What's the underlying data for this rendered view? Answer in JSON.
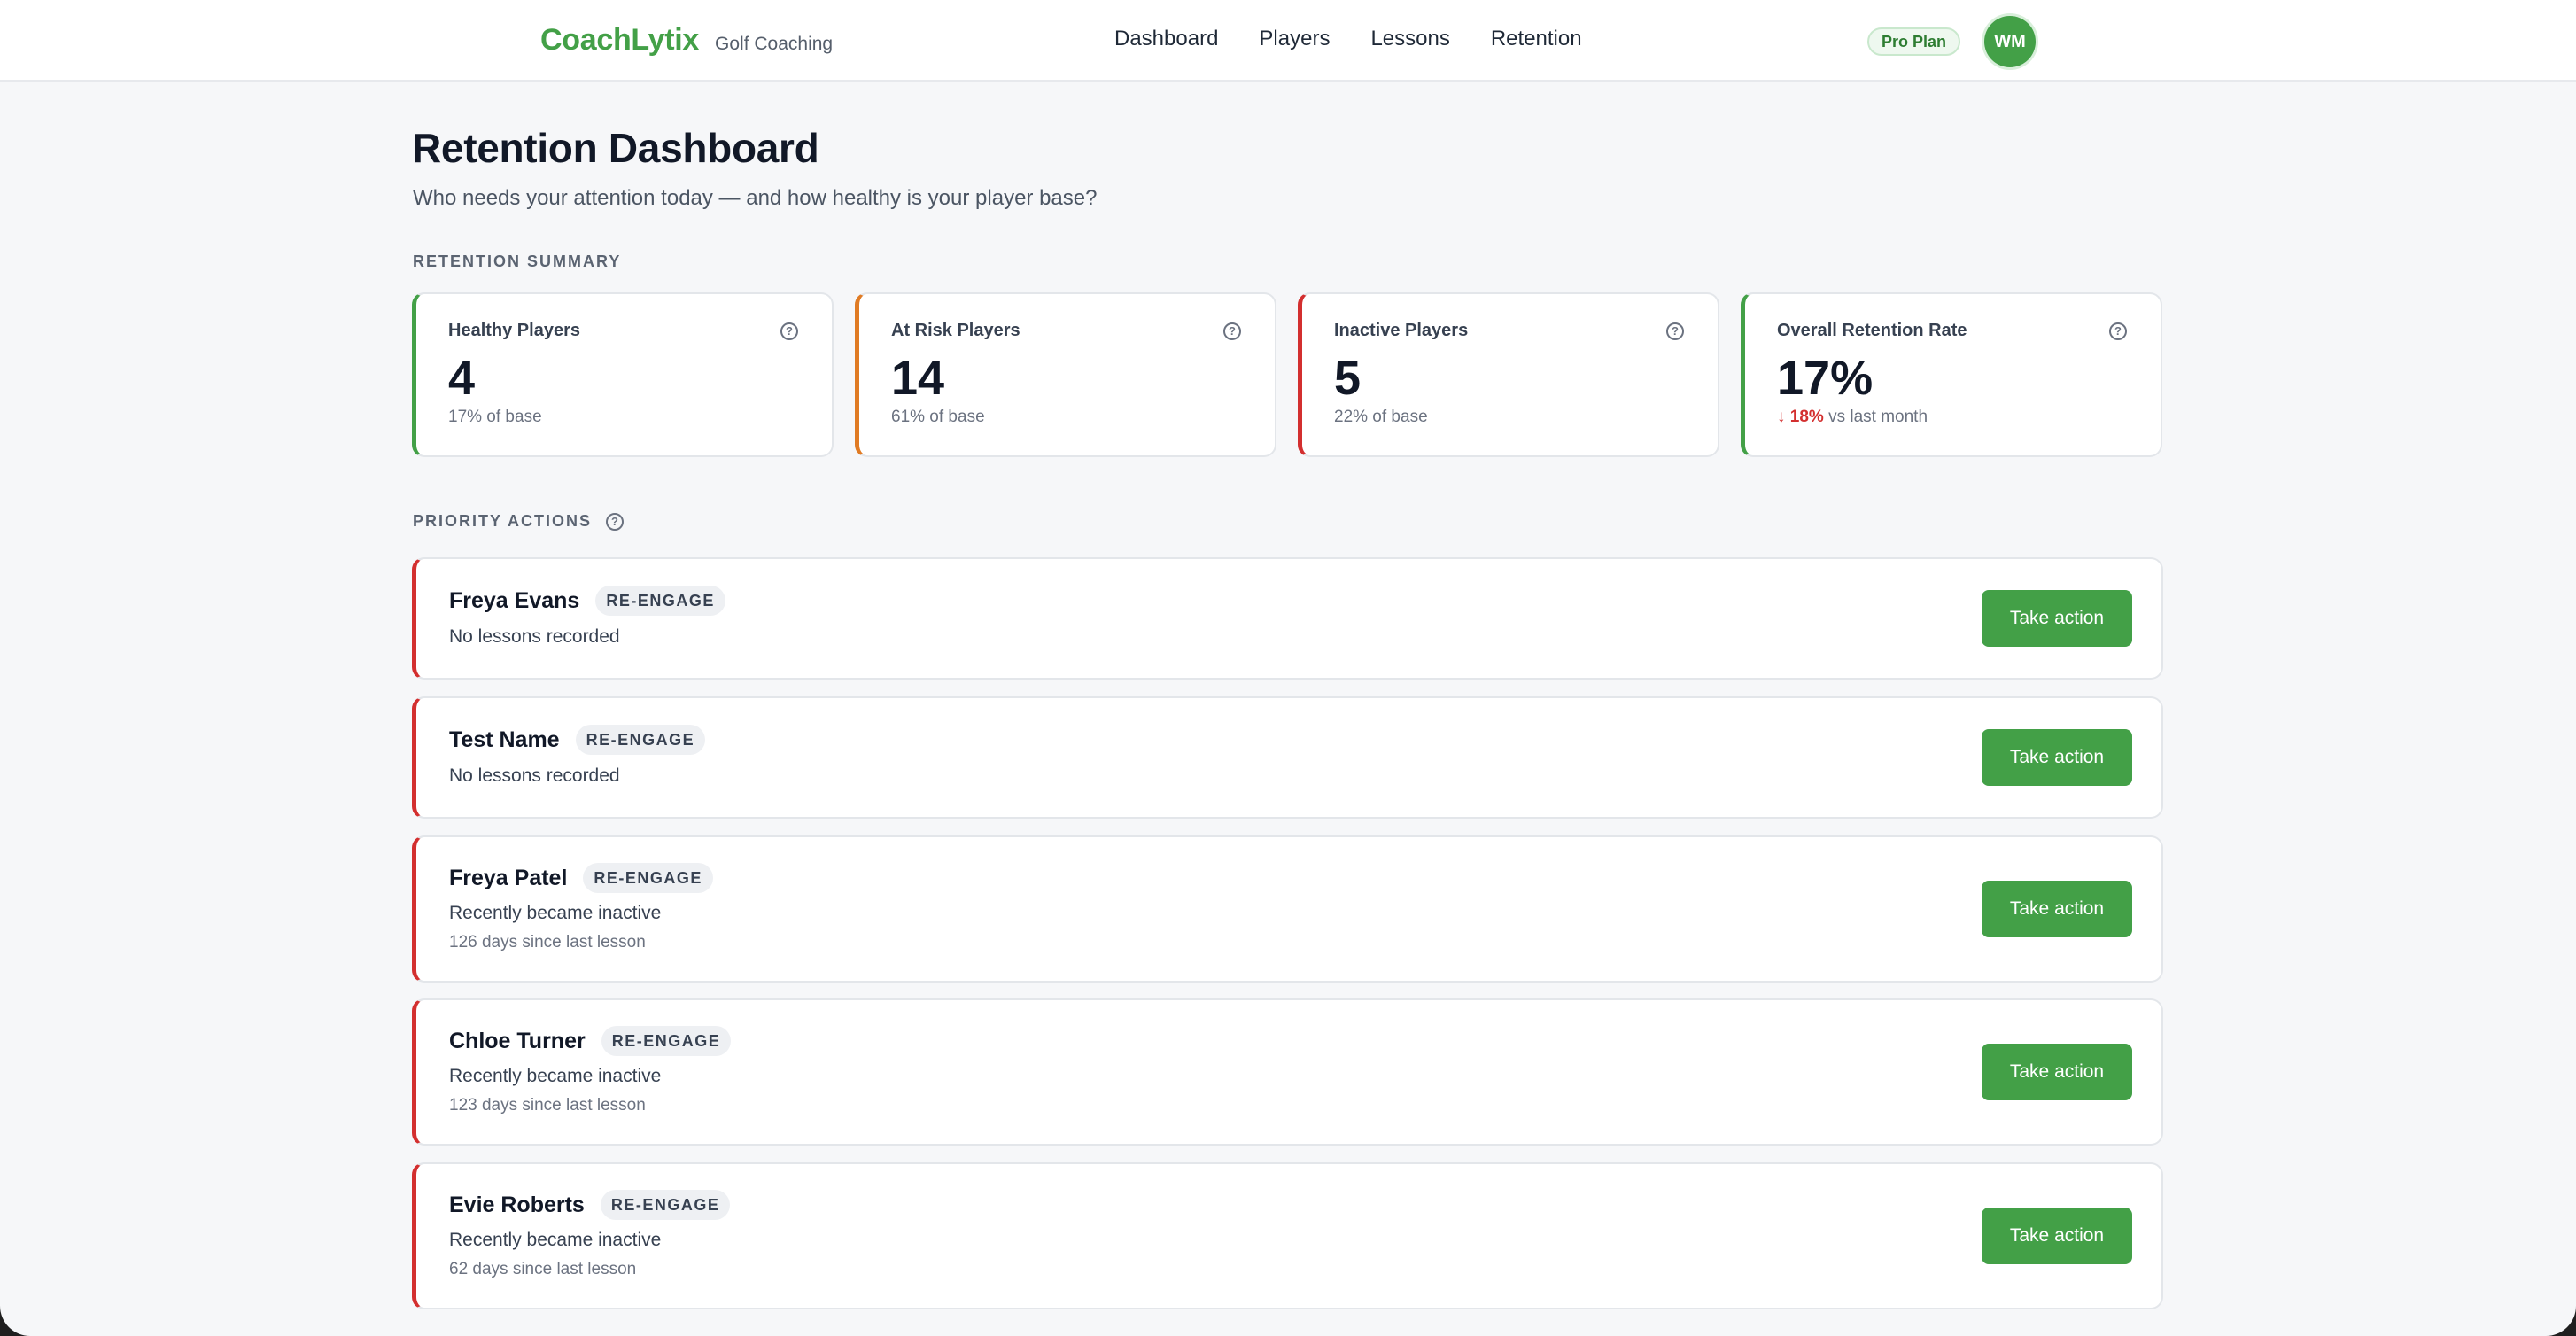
{
  "brand": {
    "name": "CoachLytix",
    "subtitle": "Golf Coaching",
    "color": "#43a047"
  },
  "nav": [
    "Dashboard",
    "Players",
    "Lessons",
    "Retention"
  ],
  "plan_badge": "Pro Plan",
  "user": {
    "initials": "WM"
  },
  "header": {
    "title": "Retention Dashboard",
    "subtitle": "Who needs your attention today — and how healthy is your player base?"
  },
  "summary": {
    "label": "RETENTION SUMMARY",
    "cards": [
      {
        "label": "Healthy Players",
        "value": "4",
        "note": "17% of base",
        "accent": "#43a047"
      },
      {
        "label": "At Risk Players",
        "value": "14",
        "note": "61% of base",
        "accent": "#e07b24"
      },
      {
        "label": "Inactive Players",
        "value": "5",
        "note": "22% of base",
        "accent": "#d32f2f"
      },
      {
        "label": "Overall Retention Rate",
        "value": "17%",
        "trend": "↓ 18%",
        "note": "vs last month",
        "accent": "#43a047"
      }
    ]
  },
  "priority": {
    "label": "PRIORITY ACTIONS",
    "button_label": "Take action",
    "tag": "RE-ENGAGE",
    "items": [
      {
        "name": "Freya Evans",
        "reason": "No lessons recorded",
        "days": ""
      },
      {
        "name": "Test Name",
        "reason": "No lessons recorded",
        "days": ""
      },
      {
        "name": "Freya Patel",
        "reason": "Recently became inactive",
        "days": "126 days since last lesson"
      },
      {
        "name": "Chloe Turner",
        "reason": "Recently became inactive",
        "days": "123 days since last lesson"
      },
      {
        "name": "Evie Roberts",
        "reason": "Recently became inactive",
        "days": "62 days since last lesson"
      }
    ]
  }
}
